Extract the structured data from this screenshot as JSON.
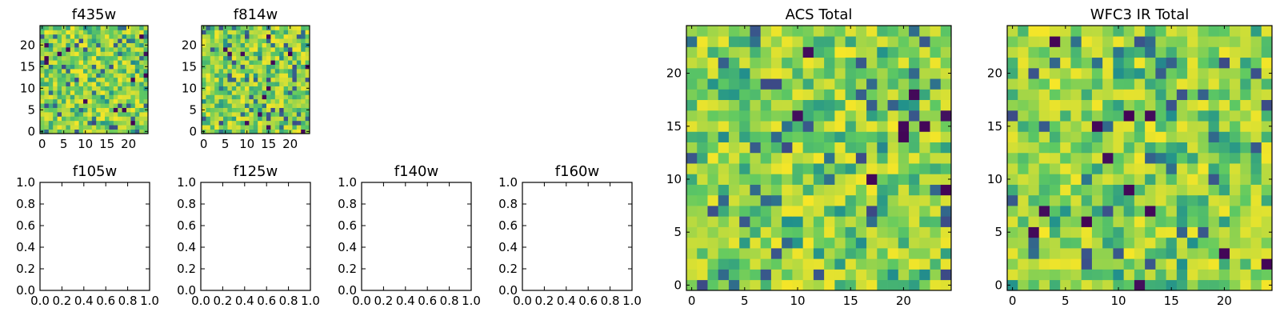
{
  "chart_data": {
    "type": "heatmap",
    "colormap": [
      "#440154",
      "#3b528b",
      "#21918c",
      "#5ec962",
      "#fde725"
    ],
    "panels": [
      {
        "title": "f435w",
        "kind": "image",
        "grid_size": 25,
        "x_ticks": [
          "0",
          "5",
          "10",
          "15",
          "20"
        ],
        "y_ticks": [
          "0",
          "5",
          "10",
          "15",
          "20"
        ],
        "seed": 11
      },
      {
        "title": "f814w",
        "kind": "image",
        "grid_size": 25,
        "x_ticks": [
          "0",
          "5",
          "10",
          "15",
          "20"
        ],
        "y_ticks": [
          "0",
          "5",
          "10",
          "15",
          "20"
        ],
        "seed": 23
      },
      {
        "title": "f105w",
        "kind": "empty",
        "xlim": [
          0,
          1
        ],
        "ylim": [
          0,
          1
        ],
        "x_ticks": [
          "0.0",
          "0.2",
          "0.4",
          "0.6",
          "0.8",
          "1.0"
        ],
        "y_ticks": [
          "0.0",
          "0.2",
          "0.4",
          "0.6",
          "0.8",
          "1.0"
        ]
      },
      {
        "title": "f125w",
        "kind": "empty",
        "xlim": [
          0,
          1
        ],
        "ylim": [
          0,
          1
        ],
        "x_ticks": [
          "0.0",
          "0.2",
          "0.4",
          "0.6",
          "0.8",
          "1.0"
        ],
        "y_ticks": [
          "0.0",
          "0.2",
          "0.4",
          "0.6",
          "0.8",
          "1.0"
        ]
      },
      {
        "title": "f140w",
        "kind": "empty",
        "xlim": [
          0,
          1
        ],
        "ylim": [
          0,
          1
        ],
        "x_ticks": [
          "0.0",
          "0.2",
          "0.4",
          "0.6",
          "0.8",
          "1.0"
        ],
        "y_ticks": [
          "0.0",
          "0.2",
          "0.4",
          "0.6",
          "0.8",
          "1.0"
        ]
      },
      {
        "title": "f160w",
        "kind": "empty",
        "xlim": [
          0,
          1
        ],
        "ylim": [
          0,
          1
        ],
        "x_ticks": [
          "0.0",
          "0.2",
          "0.4",
          "0.6",
          "0.8",
          "1.0"
        ],
        "y_ticks": [
          "0.0",
          "0.2",
          "0.4",
          "0.6",
          "0.8",
          "1.0"
        ]
      },
      {
        "title": "ACS Total",
        "kind": "image",
        "grid_size": 25,
        "x_ticks": [
          "0",
          "5",
          "10",
          "15",
          "20"
        ],
        "y_ticks": [
          "0",
          "5",
          "10",
          "15",
          "20"
        ],
        "seed": 37
      },
      {
        "title": "WFC3 IR Total",
        "kind": "image",
        "grid_size": 25,
        "x_ticks": [
          "0",
          "5",
          "10",
          "15",
          "20"
        ],
        "y_ticks": [
          "0",
          "5",
          "10",
          "15",
          "20"
        ],
        "seed": 53
      }
    ]
  }
}
